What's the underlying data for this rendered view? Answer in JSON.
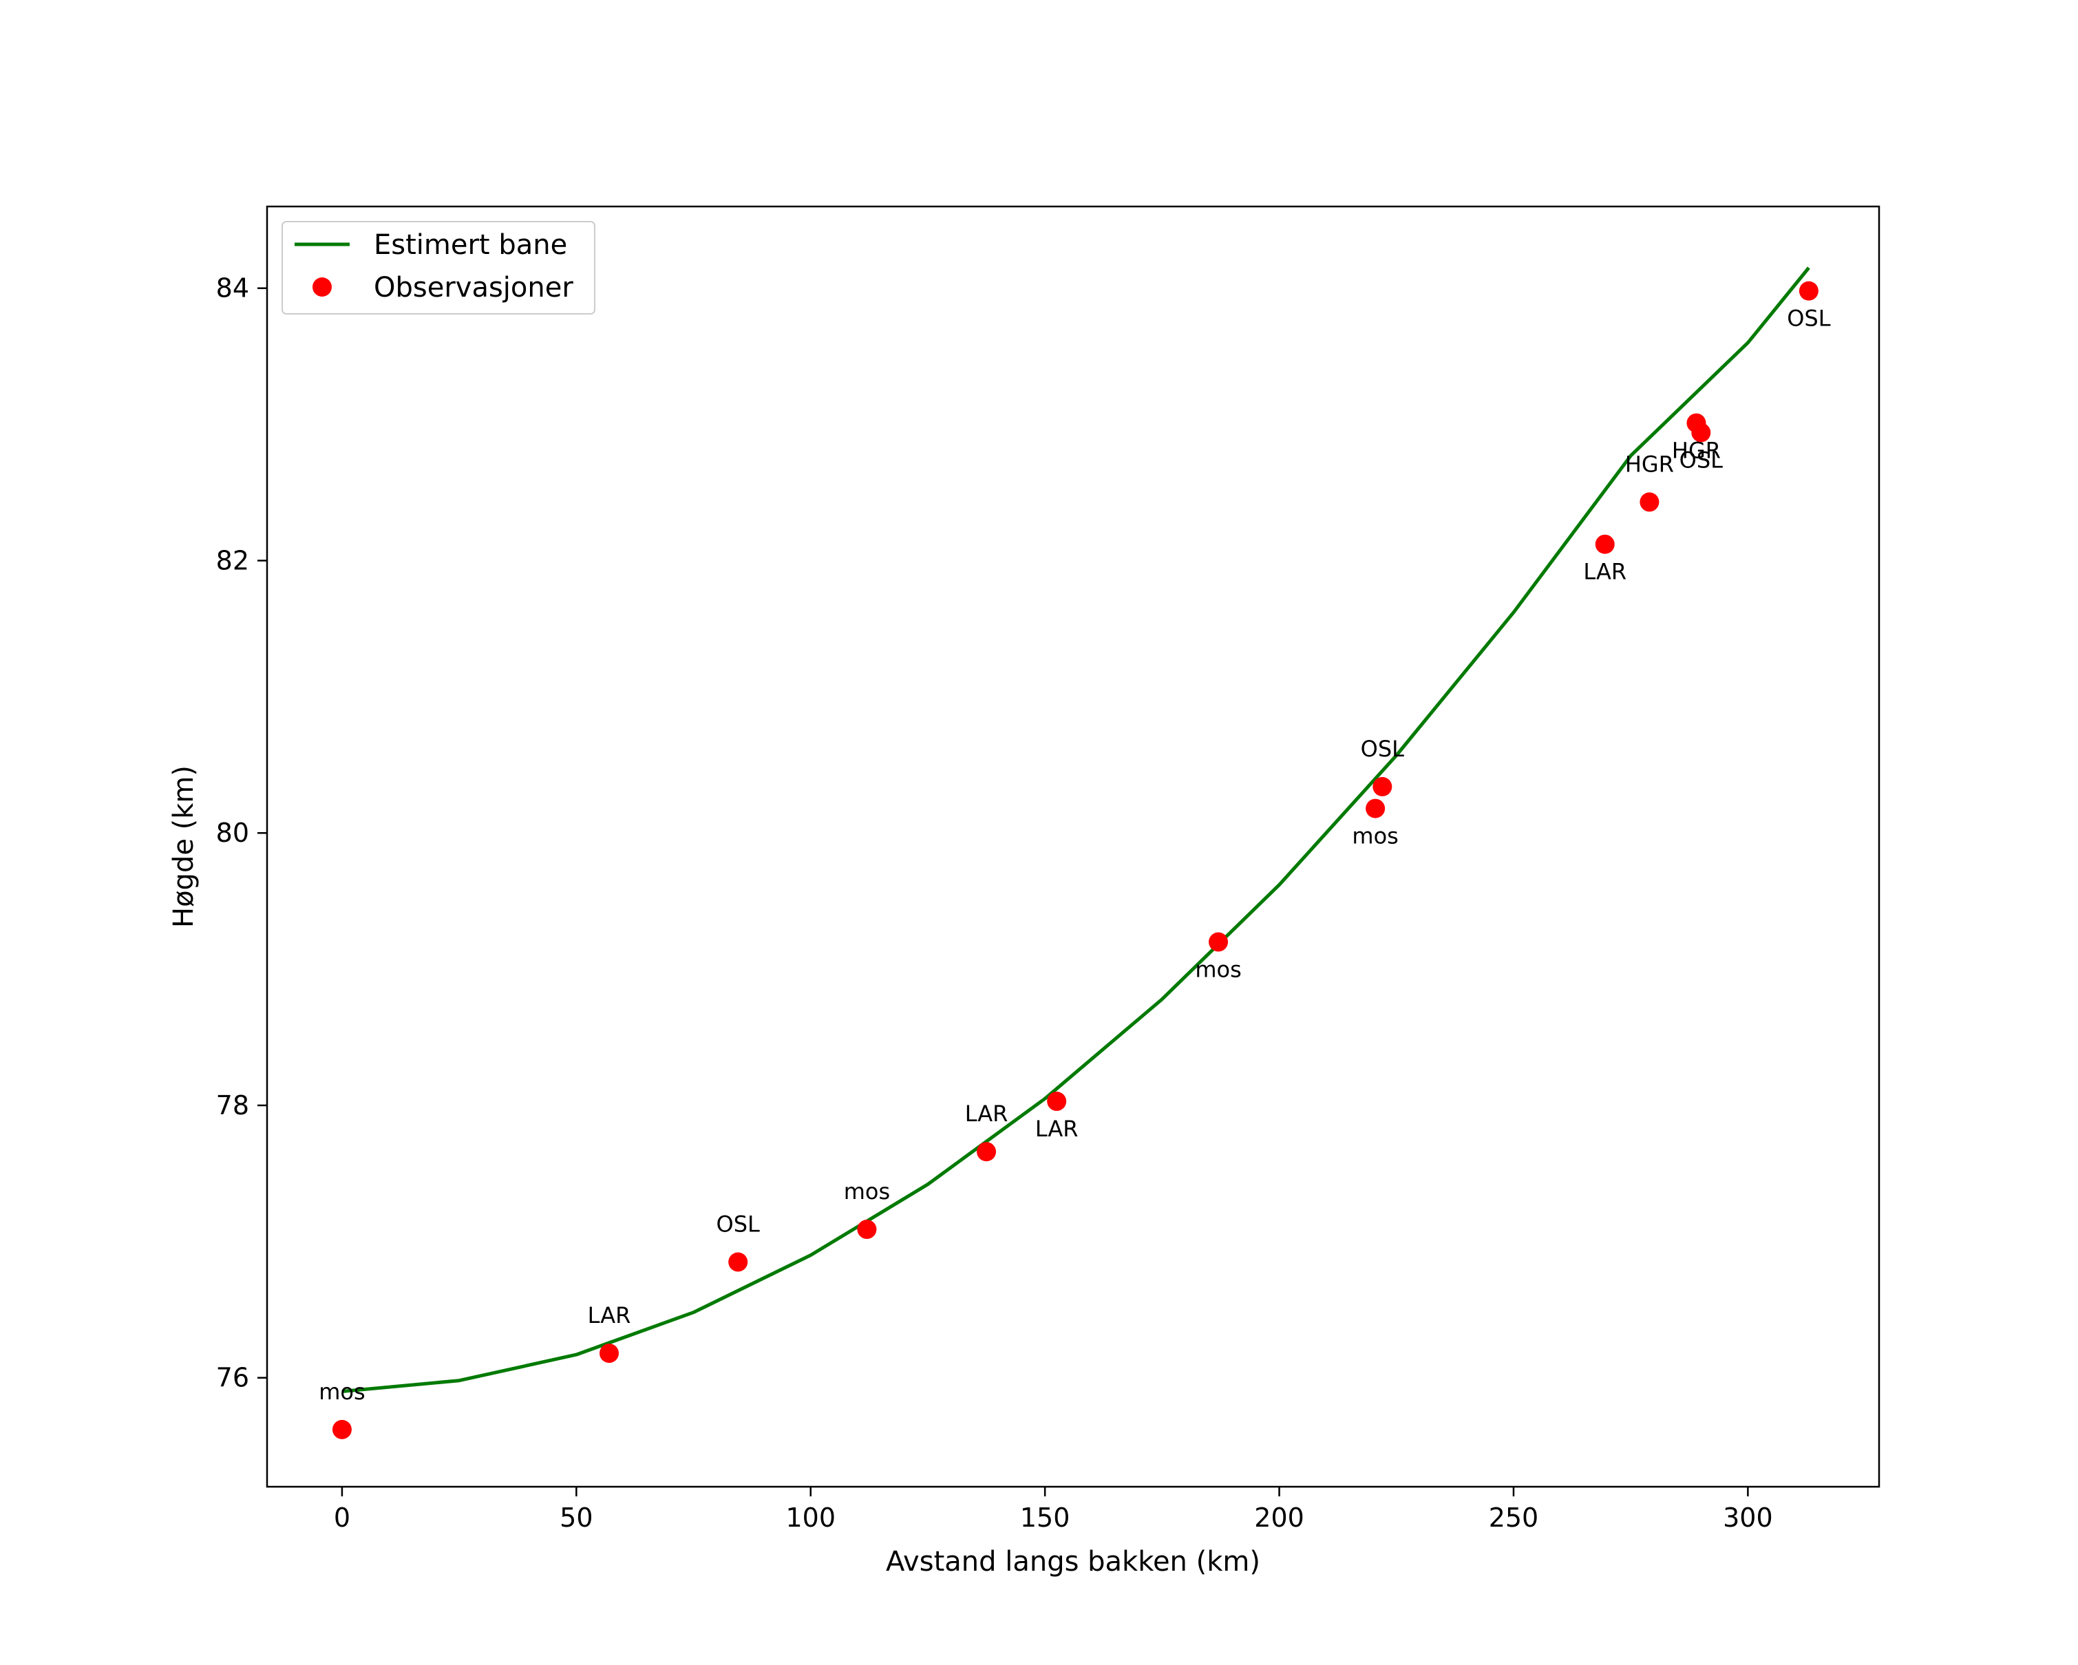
{
  "chart_data": {
    "type": "line",
    "title": "",
    "xlabel": "Avstand langs bakken (km)",
    "ylabel": "Høgde (km)",
    "xlim": [
      -16,
      328
    ],
    "ylim": [
      75.2,
      84.6
    ],
    "xticks": [
      0,
      50,
      100,
      150,
      200,
      250,
      300
    ],
    "yticks": [
      76,
      78,
      80,
      82,
      84
    ],
    "grid": false,
    "legend_position": "upper-left",
    "colors": {
      "curve": "#007a00",
      "points": "#ff0000"
    },
    "series": [
      {
        "name": "Estimert bane",
        "kind": "line",
        "x": [
          0,
          25,
          50,
          75,
          100,
          125,
          150,
          175,
          200,
          225,
          250,
          275,
          300,
          313
        ],
        "y": [
          75.9,
          75.98,
          76.17,
          76.48,
          76.9,
          77.42,
          78.05,
          78.78,
          79.62,
          80.57,
          81.62,
          82.77,
          83.6,
          84.15
        ]
      },
      {
        "name": "Observasjoner",
        "kind": "scatter",
        "points": [
          {
            "x": 0,
            "y": 75.62,
            "label": "mos",
            "label_pos": "above"
          },
          {
            "x": 57,
            "y": 76.18,
            "label": "LAR",
            "label_pos": "above"
          },
          {
            "x": 84.5,
            "y": 76.85,
            "label": "OSL",
            "label_pos": "above"
          },
          {
            "x": 112,
            "y": 77.09,
            "label": "mos",
            "label_pos": "above"
          },
          {
            "x": 137.5,
            "y": 77.66,
            "label": "LAR",
            "label_pos": "above"
          },
          {
            "x": 152.5,
            "y": 78.03,
            "label": "LAR",
            "label_pos": "below"
          },
          {
            "x": 187,
            "y": 79.2,
            "label": "mos",
            "label_pos": "below"
          },
          {
            "x": 220.5,
            "y": 80.18,
            "label": "mos",
            "label_pos": "below"
          },
          {
            "x": 222,
            "y": 80.34,
            "label": "OSL",
            "label_pos": "above"
          },
          {
            "x": 269.5,
            "y": 82.12,
            "label": "LAR",
            "label_pos": "below"
          },
          {
            "x": 279,
            "y": 82.43,
            "label": "HGR",
            "label_pos": "above"
          },
          {
            "x": 289,
            "y": 83.01,
            "label": "HGR",
            "label_pos": "below"
          },
          {
            "x": 290,
            "y": 82.94,
            "label": "OSL",
            "label_pos": "below"
          },
          {
            "x": 313,
            "y": 83.98,
            "label": "OSL",
            "label_pos": "below"
          }
        ]
      }
    ]
  }
}
